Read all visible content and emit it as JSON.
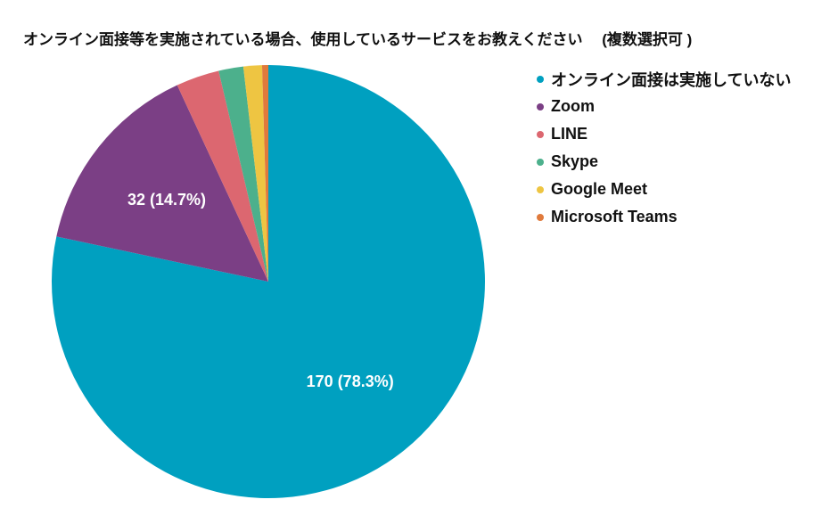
{
  "chart_data": {
    "type": "pie",
    "title": "オンライン面接等を実施されている場合、使用しているサービスをお教えください　 (複数選択可 )",
    "categories": [
      "オンライン面接は実施していない",
      "Zoom",
      "LINE",
      "Skype",
      "Google Meet",
      "Microsoft Teams"
    ],
    "values": [
      170,
      32,
      7,
      4,
      3,
      1
    ],
    "colors": [
      "#00a0c0",
      "#7b3f85",
      "#dc6770",
      "#4cb08c",
      "#eec542",
      "#e07a3c"
    ],
    "data_labels": [
      "170 (78.3%)",
      "32 (14.7%)",
      "",
      "",
      "",
      ""
    ],
    "start_angle_deg": 0,
    "direction": "clockwise",
    "legend_position": "right"
  }
}
